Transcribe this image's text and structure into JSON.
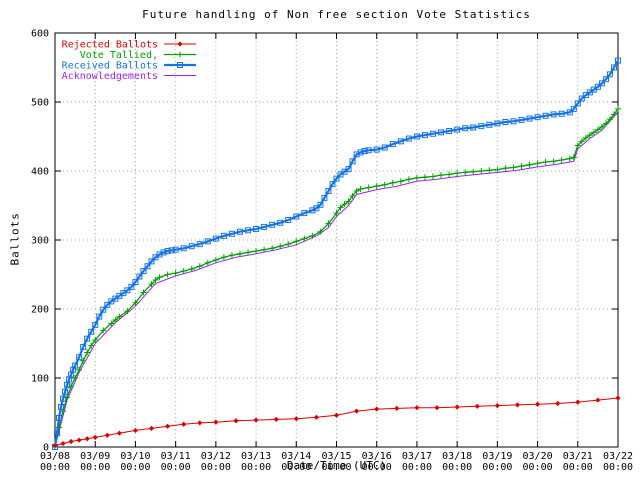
{
  "page": {
    "background": "#ffffff"
  },
  "chart_data": {
    "type": "line",
    "title": "Future handling of Non free section Vote Statistics",
    "xlabel": "Date/Time (UTC)",
    "ylabel": "Ballots",
    "ylim": [
      0,
      600
    ],
    "yticks": [
      0,
      100,
      200,
      300,
      400,
      500,
      600
    ],
    "xlim": [
      0,
      14
    ],
    "xtick_dates": [
      "03/08",
      "03/09",
      "03/10",
      "03/11",
      "03/12",
      "03/13",
      "03/14",
      "03/15",
      "03/16",
      "03/17",
      "03/18",
      "03/19",
      "03/20",
      "03/21",
      "03/22"
    ],
    "xtick_time": "00:00",
    "grid": true,
    "grid_color": "#aaaaaa",
    "frame_color": "#000000",
    "legend_position": "top-left-inside",
    "series": [
      {
        "name": "Rejected Ballots",
        "color": "#dd0000",
        "marker": "diamond",
        "line_width": 1,
        "points": [
          [
            0,
            2
          ],
          [
            0.2,
            5
          ],
          [
            0.4,
            8
          ],
          [
            0.6,
            10
          ],
          [
            0.8,
            12
          ],
          [
            1,
            14
          ],
          [
            1.3,
            17
          ],
          [
            1.6,
            20
          ],
          [
            2,
            24
          ],
          [
            2.4,
            27
          ],
          [
            2.8,
            30
          ],
          [
            3.2,
            33
          ],
          [
            3.6,
            35
          ],
          [
            4,
            36
          ],
          [
            4.5,
            38
          ],
          [
            5,
            39
          ],
          [
            5.5,
            40
          ],
          [
            6,
            41
          ],
          [
            6.5,
            43
          ],
          [
            7,
            46
          ],
          [
            7.5,
            52
          ],
          [
            8,
            55
          ],
          [
            8.5,
            56
          ],
          [
            9,
            57
          ],
          [
            9.5,
            57
          ],
          [
            10,
            58
          ],
          [
            10.5,
            59
          ],
          [
            11,
            60
          ],
          [
            11.5,
            61
          ],
          [
            12,
            62
          ],
          [
            12.5,
            63
          ],
          [
            13,
            65
          ],
          [
            13.5,
            68
          ],
          [
            14,
            71
          ]
        ]
      },
      {
        "name": "Vote Tallied,",
        "color": "#00a000",
        "marker": "plus",
        "line_width": 1.3,
        "points": [
          [
            0,
            0
          ],
          [
            0.1,
            28
          ],
          [
            0.2,
            52
          ],
          [
            0.3,
            72
          ],
          [
            0.4,
            88
          ],
          [
            0.5,
            100
          ],
          [
            0.6,
            112
          ],
          [
            0.7,
            125
          ],
          [
            0.8,
            137
          ],
          [
            0.9,
            147
          ],
          [
            1,
            155
          ],
          [
            1.2,
            169
          ],
          [
            1.4,
            179
          ],
          [
            1.5,
            184
          ],
          [
            1.6,
            189
          ],
          [
            1.8,
            197
          ],
          [
            2,
            209
          ],
          [
            2.2,
            224
          ],
          [
            2.4,
            236
          ],
          [
            2.5,
            242
          ],
          [
            2.6,
            246
          ],
          [
            2.8,
            250
          ],
          [
            3,
            252
          ],
          [
            3.2,
            255
          ],
          [
            3.4,
            258
          ],
          [
            3.6,
            262
          ],
          [
            3.8,
            267
          ],
          [
            4,
            271
          ],
          [
            4.2,
            275
          ],
          [
            4.4,
            278
          ],
          [
            4.6,
            280
          ],
          [
            4.8,
            282
          ],
          [
            5,
            284
          ],
          [
            5.2,
            286
          ],
          [
            5.4,
            288
          ],
          [
            5.6,
            291
          ],
          [
            5.8,
            294
          ],
          [
            6,
            298
          ],
          [
            6.2,
            302
          ],
          [
            6.4,
            306
          ],
          [
            6.6,
            312
          ],
          [
            6.8,
            324
          ],
          [
            7,
            339
          ],
          [
            7.1,
            347
          ],
          [
            7.2,
            352
          ],
          [
            7.3,
            356
          ],
          [
            7.4,
            364
          ],
          [
            7.5,
            371
          ],
          [
            7.6,
            374
          ],
          [
            7.8,
            376
          ],
          [
            8,
            378
          ],
          [
            8.2,
            380
          ],
          [
            8.4,
            383
          ],
          [
            8.6,
            385
          ],
          [
            8.8,
            388
          ],
          [
            9,
            390
          ],
          [
            9.2,
            391
          ],
          [
            9.4,
            392
          ],
          [
            9.6,
            394
          ],
          [
            9.8,
            395
          ],
          [
            10,
            397
          ],
          [
            10.2,
            398
          ],
          [
            10.4,
            399
          ],
          [
            10.6,
            400
          ],
          [
            10.8,
            401
          ],
          [
            11,
            402
          ],
          [
            11.2,
            404
          ],
          [
            11.4,
            405
          ],
          [
            11.6,
            407
          ],
          [
            11.8,
            409
          ],
          [
            12,
            411
          ],
          [
            12.2,
            413
          ],
          [
            12.4,
            414
          ],
          [
            12.6,
            416
          ],
          [
            12.8,
            418
          ],
          [
            12.9,
            420
          ],
          [
            13,
            437
          ],
          [
            13.1,
            443
          ],
          [
            13.2,
            448
          ],
          [
            13.3,
            452
          ],
          [
            13.4,
            456
          ],
          [
            13.5,
            460
          ],
          [
            13.6,
            464
          ],
          [
            13.7,
            469
          ],
          [
            13.8,
            475
          ],
          [
            13.9,
            482
          ],
          [
            14,
            490
          ]
        ]
      },
      {
        "name": "Received Ballots",
        "color": "#1473e6",
        "marker": "square",
        "line_width": 2.2,
        "points": [
          [
            0,
            0
          ],
          [
            0.05,
            20
          ],
          [
            0.1,
            42
          ],
          [
            0.15,
            58
          ],
          [
            0.2,
            70
          ],
          [
            0.25,
            80
          ],
          [
            0.3,
            90
          ],
          [
            0.35,
            98
          ],
          [
            0.4,
            105
          ],
          [
            0.45,
            112
          ],
          [
            0.5,
            118
          ],
          [
            0.6,
            130
          ],
          [
            0.7,
            145
          ],
          [
            0.8,
            157
          ],
          [
            0.9,
            167
          ],
          [
            1,
            177
          ],
          [
            1.1,
            189
          ],
          [
            1.2,
            199
          ],
          [
            1.3,
            206
          ],
          [
            1.4,
            211
          ],
          [
            1.5,
            215
          ],
          [
            1.6,
            219
          ],
          [
            1.7,
            223
          ],
          [
            1.8,
            227
          ],
          [
            1.9,
            232
          ],
          [
            2,
            239
          ],
          [
            2.1,
            247
          ],
          [
            2.2,
            255
          ],
          [
            2.3,
            262
          ],
          [
            2.4,
            269
          ],
          [
            2.5,
            275
          ],
          [
            2.6,
            279
          ],
          [
            2.7,
            282
          ],
          [
            2.8,
            284
          ],
          [
            2.9,
            285
          ],
          [
            3,
            286
          ],
          [
            3.2,
            288
          ],
          [
            3.4,
            291
          ],
          [
            3.6,
            294
          ],
          [
            3.8,
            298
          ],
          [
            4,
            302
          ],
          [
            4.2,
            306
          ],
          [
            4.4,
            309
          ],
          [
            4.6,
            312
          ],
          [
            4.8,
            314
          ],
          [
            5,
            316
          ],
          [
            5.2,
            319
          ],
          [
            5.4,
            322
          ],
          [
            5.6,
            325
          ],
          [
            5.8,
            329
          ],
          [
            6,
            334
          ],
          [
            6.2,
            339
          ],
          [
            6.4,
            343
          ],
          [
            6.5,
            346
          ],
          [
            6.6,
            351
          ],
          [
            6.7,
            361
          ],
          [
            6.8,
            371
          ],
          [
            6.9,
            381
          ],
          [
            7,
            389
          ],
          [
            7.1,
            395
          ],
          [
            7.2,
            399
          ],
          [
            7.3,
            403
          ],
          [
            7.4,
            414
          ],
          [
            7.5,
            424
          ],
          [
            7.6,
            427
          ],
          [
            7.7,
            429
          ],
          [
            7.8,
            430
          ],
          [
            8,
            431
          ],
          [
            8.2,
            434
          ],
          [
            8.4,
            439
          ],
          [
            8.6,
            443
          ],
          [
            8.8,
            447
          ],
          [
            9,
            450
          ],
          [
            9.2,
            452
          ],
          [
            9.4,
            454
          ],
          [
            9.6,
            456
          ],
          [
            9.8,
            458
          ],
          [
            10,
            460
          ],
          [
            10.2,
            462
          ],
          [
            10.4,
            463
          ],
          [
            10.6,
            465
          ],
          [
            10.8,
            467
          ],
          [
            11,
            469
          ],
          [
            11.2,
            471
          ],
          [
            11.4,
            472
          ],
          [
            11.6,
            474
          ],
          [
            11.8,
            476
          ],
          [
            12,
            478
          ],
          [
            12.2,
            480
          ],
          [
            12.4,
            482
          ],
          [
            12.6,
            483
          ],
          [
            12.8,
            485
          ],
          [
            12.9,
            490
          ],
          [
            13,
            498
          ],
          [
            13.1,
            505
          ],
          [
            13.2,
            510
          ],
          [
            13.3,
            514
          ],
          [
            13.4,
            518
          ],
          [
            13.5,
            522
          ],
          [
            13.6,
            527
          ],
          [
            13.7,
            533
          ],
          [
            13.8,
            540
          ],
          [
            13.9,
            550
          ],
          [
            14,
            560
          ]
        ]
      },
      {
        "name": "Acknowledgements",
        "color": "#a020f0",
        "marker": "none",
        "line_width": 1,
        "points": [
          [
            0,
            0
          ],
          [
            0.3,
            68
          ],
          [
            0.6,
            108
          ],
          [
            1,
            150
          ],
          [
            1.5,
            180
          ],
          [
            2,
            204
          ],
          [
            2.5,
            237
          ],
          [
            3,
            248
          ],
          [
            3.5,
            256
          ],
          [
            4,
            267
          ],
          [
            4.5,
            275
          ],
          [
            5,
            280
          ],
          [
            5.5,
            286
          ],
          [
            6,
            293
          ],
          [
            6.5,
            306
          ],
          [
            6.8,
            318
          ],
          [
            7,
            334
          ],
          [
            7.3,
            350
          ],
          [
            7.5,
            366
          ],
          [
            8,
            373
          ],
          [
            8.5,
            378
          ],
          [
            9,
            385
          ],
          [
            9.5,
            388
          ],
          [
            10,
            392
          ],
          [
            10.5,
            395
          ],
          [
            11,
            398
          ],
          [
            11.5,
            401
          ],
          [
            12,
            406
          ],
          [
            12.5,
            410
          ],
          [
            12.9,
            414
          ],
          [
            13,
            432
          ],
          [
            13.3,
            447
          ],
          [
            13.6,
            459
          ],
          [
            14,
            486
          ]
        ]
      }
    ]
  }
}
